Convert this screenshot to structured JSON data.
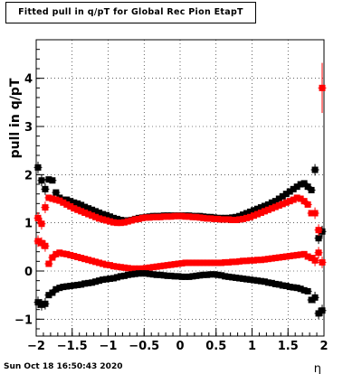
{
  "datestamp": "Sun Oct 18 16:50:43 2020",
  "chart_data": {
    "type": "scatter",
    "title": "Fitted pull in q/pT for Global Rec Pion EtapT",
    "xlabel": "η",
    "ylabel": "pull in q/pT",
    "xlim": [
      -2,
      2
    ],
    "ylim": [
      -1.35,
      4.8
    ],
    "xticks": [
      -2,
      -1.5,
      -1,
      -0.5,
      0,
      0.5,
      1,
      1.5,
      2
    ],
    "xtick_labels": [
      "−2",
      "−1.5",
      "−1",
      "−0.5",
      "0",
      "0.5",
      "1",
      "1.5",
      "2"
    ],
    "yticks": [
      -1,
      0,
      1,
      2,
      3,
      4
    ],
    "ytick_labels": [
      "−1",
      "0",
      "1",
      "2",
      "3",
      "4"
    ],
    "grid": true,
    "series": [
      {
        "color": "#000000",
        "x": [
          -1.975,
          -1.925,
          -1.875,
          -1.825,
          -1.775,
          -1.725,
          -1.675,
          -1.625,
          -1.575,
          -1.525,
          -1.475,
          -1.425,
          -1.375,
          -1.325,
          -1.275,
          -1.225,
          -1.175,
          -1.125,
          -1.075,
          -1.025,
          -0.975,
          -0.925,
          -0.875,
          -0.825,
          -0.775,
          -0.725,
          -0.675,
          -0.625,
          -0.575,
          -0.525,
          -0.475,
          -0.425,
          -0.375,
          -0.325,
          -0.275,
          -0.225,
          -0.175,
          -0.125,
          -0.075,
          -0.025,
          0.025,
          0.075,
          0.125,
          0.175,
          0.225,
          0.275,
          0.325,
          0.375,
          0.425,
          0.475,
          0.525,
          0.575,
          0.625,
          0.675,
          0.725,
          0.775,
          0.825,
          0.875,
          0.925,
          0.975,
          1.025,
          1.075,
          1.125,
          1.175,
          1.225,
          1.275,
          1.325,
          1.375,
          1.425,
          1.475,
          1.525,
          1.575,
          1.625,
          1.675,
          1.725,
          1.775,
          1.825,
          1.875,
          1.925,
          1.975
        ],
        "y": [
          2.15,
          1.88,
          1.7,
          1.9,
          1.88,
          1.63,
          1.52,
          1.48,
          1.48,
          1.45,
          1.42,
          1.4,
          1.37,
          1.33,
          1.3,
          1.27,
          1.24,
          1.21,
          1.18,
          1.16,
          1.13,
          1.1,
          1.08,
          1.06,
          1.05,
          1.05,
          1.06,
          1.08,
          1.1,
          1.11,
          1.12,
          1.13,
          1.14,
          1.14,
          1.14,
          1.15,
          1.15,
          1.15,
          1.15,
          1.15,
          1.15,
          1.15,
          1.15,
          1.14,
          1.14,
          1.14,
          1.13,
          1.12,
          1.12,
          1.11,
          1.1,
          1.1,
          1.1,
          1.1,
          1.11,
          1.12,
          1.14,
          1.17,
          1.2,
          1.23,
          1.26,
          1.29,
          1.32,
          1.35,
          1.38,
          1.42,
          1.45,
          1.5,
          1.55,
          1.6,
          1.65,
          1.7,
          1.75,
          1.8,
          1.82,
          1.75,
          1.68,
          2.1,
          0.68,
          0.82
        ]
      },
      {
        "color": "#ff0000",
        "x": [
          -1.975,
          -1.925,
          -1.875,
          -1.825,
          -1.775,
          -1.725,
          -1.675,
          -1.625,
          -1.575,
          -1.525,
          -1.475,
          -1.425,
          -1.375,
          -1.325,
          -1.275,
          -1.225,
          -1.175,
          -1.125,
          -1.075,
          -1.025,
          -0.975,
          -0.925,
          -0.875,
          -0.825,
          -0.775,
          -0.725,
          -0.675,
          -0.625,
          -0.575,
          -0.525,
          -0.475,
          -0.425,
          -0.375,
          -0.325,
          -0.275,
          -0.225,
          -0.175,
          -0.125,
          -0.075,
          -0.025,
          0.025,
          0.075,
          0.125,
          0.175,
          0.225,
          0.275,
          0.325,
          0.375,
          0.425,
          0.475,
          0.525,
          0.575,
          0.625,
          0.675,
          0.725,
          0.775,
          0.825,
          0.875,
          0.925,
          0.975,
          1.025,
          1.075,
          1.125,
          1.175,
          1.225,
          1.275,
          1.325,
          1.375,
          1.425,
          1.475,
          1.525,
          1.575,
          1.625,
          1.675,
          1.725,
          1.775,
          1.825,
          1.875,
          1.925,
          1.975
        ],
        "y": [
          1.1,
          0.98,
          1.32,
          1.52,
          1.5,
          1.48,
          1.46,
          1.42,
          1.38,
          1.34,
          1.3,
          1.27,
          1.24,
          1.21,
          1.18,
          1.15,
          1.12,
          1.09,
          1.07,
          1.05,
          1.03,
          1.01,
          1.0,
          1.0,
          1.01,
          1.03,
          1.05,
          1.07,
          1.08,
          1.1,
          1.11,
          1.11,
          1.12,
          1.12,
          1.12,
          1.13,
          1.13,
          1.13,
          1.14,
          1.14,
          1.14,
          1.13,
          1.13,
          1.12,
          1.12,
          1.11,
          1.1,
          1.09,
          1.09,
          1.08,
          1.08,
          1.07,
          1.07,
          1.07,
          1.06,
          1.06,
          1.07,
          1.08,
          1.1,
          1.12,
          1.15,
          1.18,
          1.21,
          1.24,
          1.27,
          1.3,
          1.33,
          1.36,
          1.39,
          1.42,
          1.45,
          1.48,
          1.52,
          1.5,
          1.45,
          1.38,
          1.2,
          1.2,
          0.85,
          3.8
        ]
      },
      {
        "color": "#ff0000",
        "x": [
          -1.975,
          -1.925,
          -1.875,
          -1.825,
          -1.775,
          -1.725,
          -1.675,
          -1.625,
          -1.575,
          -1.525,
          -1.475,
          -1.425,
          -1.375,
          -1.325,
          -1.275,
          -1.225,
          -1.175,
          -1.125,
          -1.075,
          -1.025,
          -0.975,
          -0.925,
          -0.875,
          -0.825,
          -0.775,
          -0.725,
          -0.675,
          -0.625,
          -0.575,
          -0.525,
          -0.475,
          -0.425,
          -0.375,
          -0.325,
          -0.275,
          -0.225,
          -0.175,
          -0.125,
          -0.075,
          -0.025,
          0.025,
          0.075,
          0.125,
          0.175,
          0.225,
          0.275,
          0.325,
          0.375,
          0.425,
          0.475,
          0.525,
          0.575,
          0.625,
          0.675,
          0.725,
          0.775,
          0.825,
          0.875,
          0.925,
          0.975,
          1.025,
          1.075,
          1.125,
          1.175,
          1.225,
          1.275,
          1.325,
          1.375,
          1.425,
          1.475,
          1.525,
          1.575,
          1.625,
          1.675,
          1.725,
          1.775,
          1.825,
          1.875,
          1.925,
          1.975
        ],
        "y": [
          0.62,
          0.58,
          0.52,
          0.15,
          0.28,
          0.35,
          0.38,
          0.36,
          0.35,
          0.33,
          0.31,
          0.29,
          0.27,
          0.25,
          0.23,
          0.21,
          0.19,
          0.17,
          0.15,
          0.13,
          0.12,
          0.1,
          0.09,
          0.08,
          0.07,
          0.06,
          0.05,
          0.05,
          0.05,
          0.05,
          0.06,
          0.07,
          0.08,
          0.09,
          0.1,
          0.11,
          0.12,
          0.13,
          0.14,
          0.15,
          0.16,
          0.17,
          0.17,
          0.17,
          0.17,
          0.17,
          0.17,
          0.17,
          0.17,
          0.17,
          0.17,
          0.17,
          0.18,
          0.18,
          0.19,
          0.19,
          0.2,
          0.21,
          0.21,
          0.22,
          0.22,
          0.23,
          0.23,
          0.24,
          0.25,
          0.26,
          0.27,
          0.28,
          0.29,
          0.3,
          0.31,
          0.32,
          0.33,
          0.34,
          0.35,
          0.3,
          0.27,
          0.22,
          0.38,
          0.18
        ]
      },
      {
        "color": "#000000",
        "x": [
          -1.975,
          -1.925,
          -1.875,
          -1.825,
          -1.775,
          -1.725,
          -1.675,
          -1.625,
          -1.575,
          -1.525,
          -1.475,
          -1.425,
          -1.375,
          -1.325,
          -1.275,
          -1.225,
          -1.175,
          -1.125,
          -1.075,
          -1.025,
          -0.975,
          -0.925,
          -0.875,
          -0.825,
          -0.775,
          -0.725,
          -0.675,
          -0.625,
          -0.575,
          -0.525,
          -0.475,
          -0.425,
          -0.375,
          -0.325,
          -0.275,
          -0.225,
          -0.175,
          -0.125,
          -0.075,
          -0.025,
          0.025,
          0.075,
          0.125,
          0.175,
          0.225,
          0.275,
          0.325,
          0.375,
          0.425,
          0.475,
          0.525,
          0.575,
          0.625,
          0.675,
          0.725,
          0.775,
          0.825,
          0.875,
          0.925,
          0.975,
          1.025,
          1.075,
          1.125,
          1.175,
          1.225,
          1.275,
          1.325,
          1.375,
          1.425,
          1.475,
          1.525,
          1.575,
          1.625,
          1.675,
          1.725,
          1.775,
          1.825,
          1.875,
          1.925,
          1.975
        ],
        "y": [
          -0.65,
          -0.7,
          -0.68,
          -0.5,
          -0.45,
          -0.38,
          -0.35,
          -0.33,
          -0.32,
          -0.31,
          -0.3,
          -0.29,
          -0.28,
          -0.26,
          -0.25,
          -0.24,
          -0.22,
          -0.2,
          -0.18,
          -0.17,
          -0.16,
          -0.15,
          -0.13,
          -0.11,
          -0.1,
          -0.08,
          -0.07,
          -0.06,
          -0.05,
          -0.05,
          -0.05,
          -0.06,
          -0.07,
          -0.08,
          -0.08,
          -0.09,
          -0.1,
          -0.1,
          -0.11,
          -0.11,
          -0.12,
          -0.12,
          -0.12,
          -0.11,
          -0.1,
          -0.09,
          -0.08,
          -0.08,
          -0.07,
          -0.07,
          -0.08,
          -0.09,
          -0.11,
          -0.12,
          -0.13,
          -0.14,
          -0.15,
          -0.16,
          -0.17,
          -0.18,
          -0.19,
          -0.2,
          -0.21,
          -0.22,
          -0.24,
          -0.25,
          -0.27,
          -0.28,
          -0.3,
          -0.31,
          -0.33,
          -0.34,
          -0.35,
          -0.37,
          -0.4,
          -0.42,
          -0.6,
          -0.55,
          -0.88,
          -0.82
        ]
      }
    ]
  }
}
